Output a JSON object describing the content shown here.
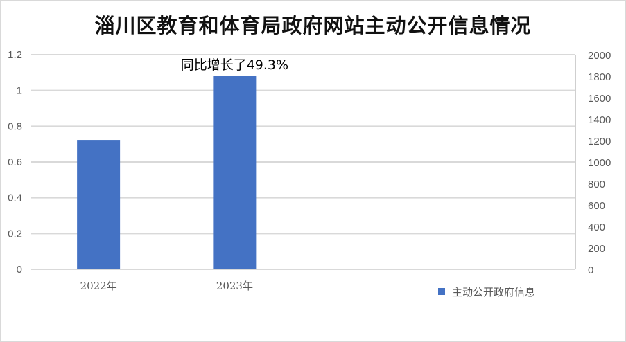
{
  "chart_data": {
    "type": "bar",
    "title": "淄川区教育和体育局政府网站主动公开信息情况",
    "categories": [
      "2022年",
      "2023年"
    ],
    "series": [
      {
        "name": "主动公开政府信息",
        "values": [
          1206,
          1800
        ],
        "axis": "right",
        "color": "#4472c4"
      }
    ],
    "left_axis": {
      "ylim": [
        0,
        1.2
      ],
      "ticks": [
        "0",
        "0.2",
        "0.4",
        "0.6",
        "0.8",
        "1",
        "1.2"
      ]
    },
    "right_axis": {
      "ylim": [
        0,
        2000
      ],
      "ticks": [
        "0",
        "200",
        "400",
        "600",
        "800",
        "1000",
        "1200",
        "1400",
        "1600",
        "1800",
        "2000"
      ]
    },
    "annotation": "同比增长了49.3%",
    "grid": true,
    "legend": "bottom-right"
  }
}
